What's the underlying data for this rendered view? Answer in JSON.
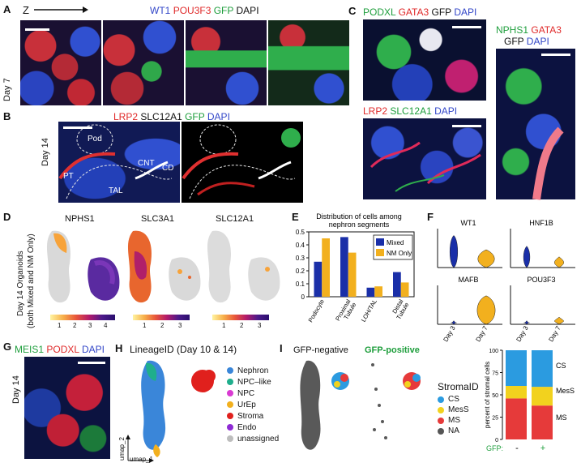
{
  "panels": {
    "A": {
      "letter": "A",
      "axis_label": "Z",
      "stain": [
        {
          "text": "WT1",
          "color": "#3246c8"
        },
        {
          "text": "POU3F3",
          "color": "#e02a2a"
        },
        {
          "text": "GFP",
          "color": "#1e9e3c"
        },
        {
          "text": "DAPI",
          "color": "#222222"
        }
      ],
      "side_label": "Day 7"
    },
    "B": {
      "letter": "B",
      "stain": [
        {
          "text": "LRP2",
          "color": "#e02a2a"
        },
        {
          "text": "SLC12A1",
          "color": "#222222"
        },
        {
          "text": "GFP",
          "color": "#1e9e3c"
        },
        {
          "text": "DAPI",
          "color": "#3246c8"
        }
      ],
      "side_label": "Day 14",
      "annotations": [
        "Pod",
        "PT",
        "TAL",
        "CNT",
        "CD"
      ]
    },
    "C": {
      "letter": "C",
      "stain_top": [
        {
          "text": "PODXL",
          "color": "#1e9e3c"
        },
        {
          "text": "GATA3",
          "color": "#e02a2a"
        },
        {
          "text": "GFP",
          "color": "#222222"
        },
        {
          "text": "DAPI",
          "color": "#3246c8"
        }
      ],
      "stain_bottom": [
        {
          "text": "LRP2",
          "color": "#e02a2a"
        },
        {
          "text": "SLC12A1",
          "color": "#1e9e3c"
        },
        {
          "text": "DAPI",
          "color": "#3246c8"
        }
      ],
      "stain_right_1": [
        {
          "text": "NPHS1",
          "color": "#1e9e3c"
        },
        {
          "text": "GATA3",
          "color": "#e02a2a"
        }
      ],
      "stain_right_2": [
        {
          "text": "GFP",
          "color": "#222222"
        },
        {
          "text": "DAPI",
          "color": "#3246c8"
        }
      ]
    },
    "D": {
      "letter": "D",
      "side_label_1": "Day 14 Organoids",
      "side_label_2": "(both Mixed and NM Only)",
      "maps": [
        {
          "gene": "NPHS1",
          "ticks": [
            "1",
            "2",
            "3",
            "4"
          ]
        },
        {
          "gene": "SLC3A1",
          "ticks": [
            "1",
            "2",
            "3"
          ]
        },
        {
          "gene": "SLC12A1",
          "ticks": [
            "1",
            "2",
            "3"
          ]
        }
      ]
    },
    "E": {
      "letter": "E"
    },
    "F": {
      "letter": "F",
      "genes": [
        "WT1",
        "HNF1B",
        "MAFB",
        "POU3F3"
      ],
      "x_ticks": [
        "Day 3",
        "Day 7"
      ],
      "colors": {
        "day3": "#1a2fa8",
        "day7": "#f2b01e"
      }
    },
    "G": {
      "letter": "G",
      "stain": [
        {
          "text": "MEIS1",
          "color": "#1e9e3c"
        },
        {
          "text": "PODXL",
          "color": "#e02a2a"
        },
        {
          "text": "DAPI",
          "color": "#3246c8"
        }
      ],
      "side_label": "Day 14"
    },
    "H": {
      "letter": "H",
      "title": "LineageID (Day 10 & 14)",
      "xlabel": "umap_1",
      "ylabel": "umap_2",
      "legend": [
        {
          "name": "Nephron",
          "color": "#3a86d9"
        },
        {
          "name": "NPC–like",
          "color": "#1fae8c"
        },
        {
          "name": "NPC",
          "color": "#d93ad2"
        },
        {
          "name": "UrEp",
          "color": "#f2b01e"
        },
        {
          "name": "Stroma",
          "color": "#e0201d"
        },
        {
          "name": "Endo",
          "color": "#8e2bd4"
        },
        {
          "name": "unassigned",
          "color": "#bdbdbd"
        }
      ]
    },
    "I": {
      "letter": "I",
      "gfp_negative": "GFP-negative",
      "gfp_positive": "GFP-positive",
      "stroma_title": "StromaID",
      "stroma_legend": [
        {
          "name": "CS",
          "color": "#2b9be0"
        },
        {
          "name": "MesS",
          "color": "#f2d21e"
        },
        {
          "name": "MS",
          "color": "#e63a3a"
        },
        {
          "name": "NA",
          "color": "#555555"
        }
      ],
      "gfp_axis_label": "GFP:",
      "gfp_minus": "-",
      "gfp_plus": "+"
    }
  },
  "chart_data": [
    {
      "type": "bar",
      "title": "Distribution of cells among nephron segments",
      "categories": [
        "Podocyte",
        "Proximal Tubule",
        "LOH/TAL",
        "Distal Tubule"
      ],
      "series": [
        {
          "name": "Mixed",
          "color": "#1a2fa8",
          "values": [
            0.27,
            0.46,
            0.07,
            0.19
          ]
        },
        {
          "name": "NM Only",
          "color": "#f2b01e",
          "values": [
            0.45,
            0.34,
            0.08,
            0.11
          ]
        }
      ],
      "ylim": [
        0,
        0.5
      ],
      "yticks": [
        "0",
        "0.1",
        "0.2",
        "0.3",
        "0.4",
        "0.5"
      ],
      "legend": "top-right"
    },
    {
      "type": "bar",
      "stacked": true,
      "categories": [
        "-",
        "+"
      ],
      "ylabel": "percent of stromal cells",
      "ylim": [
        0,
        100
      ],
      "yticks": [
        "0",
        "25",
        "50",
        "75",
        "100"
      ],
      "series": [
        {
          "name": "MS",
          "color": "#e63a3a",
          "values": [
            46,
            38
          ]
        },
        {
          "name": "MesS",
          "color": "#f2d21e",
          "values": [
            14,
            21
          ]
        },
        {
          "name": "CS",
          "color": "#2b9be0",
          "values": [
            40,
            41
          ]
        }
      ],
      "labels": [
        "CS",
        "MesS",
        "MS"
      ]
    }
  ]
}
